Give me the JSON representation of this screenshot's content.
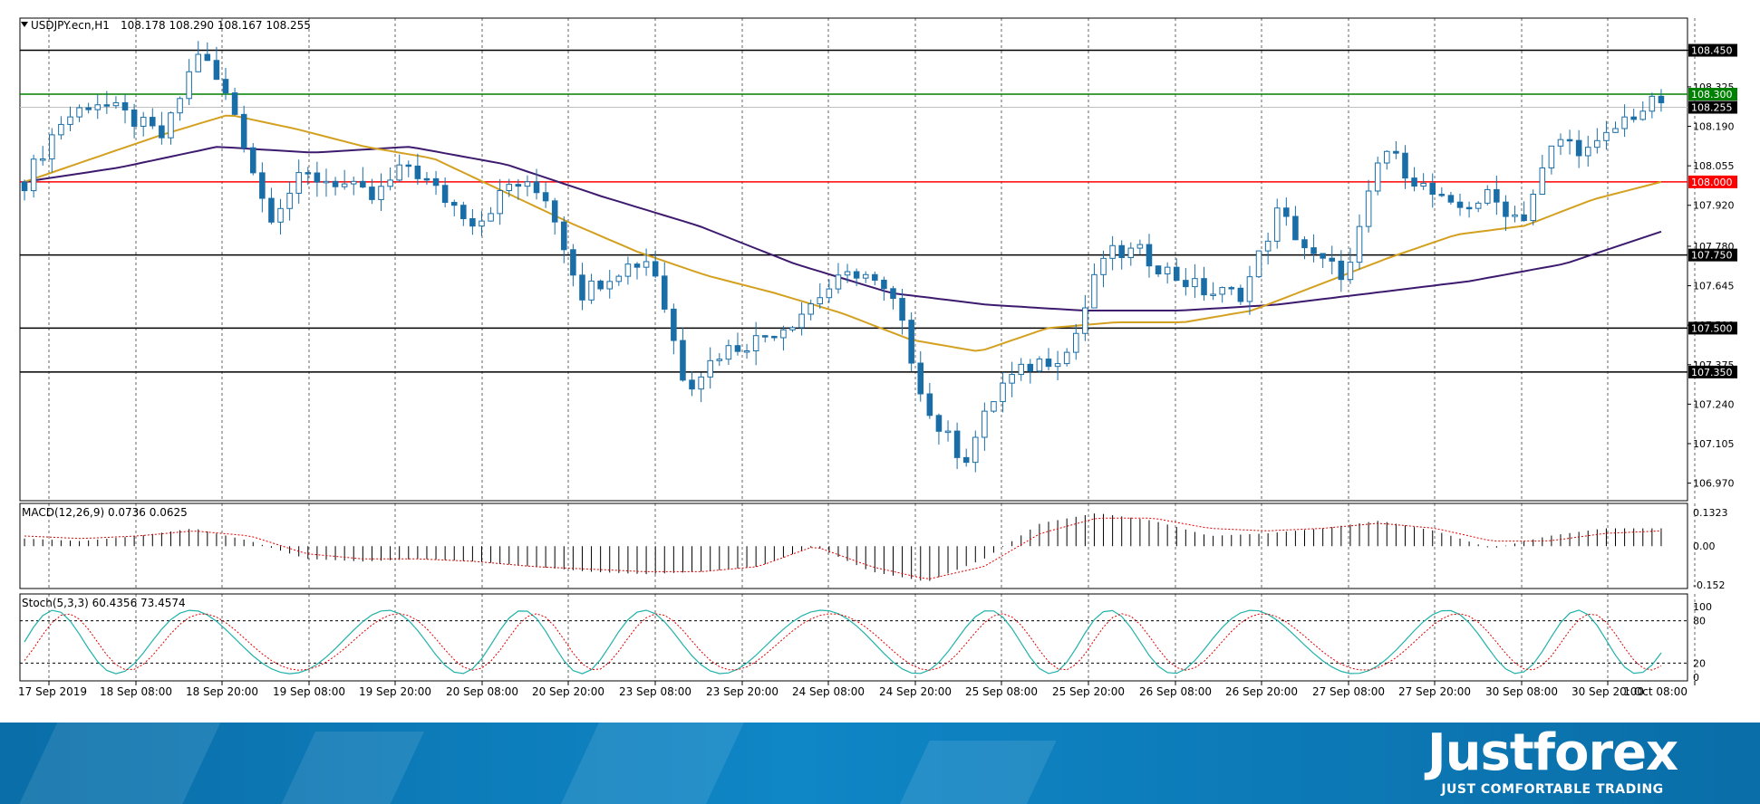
{
  "chart_data": {
    "type": "candlestick",
    "symbol_label": "USDJPY.ecn,H1",
    "ohlc_label": "108.178 108.290 108.167 108.255",
    "price_ticks": [
      "108.450",
      "108.325",
      "108.190",
      "108.055",
      "107.920",
      "107.780",
      "107.645",
      "107.510",
      "107.375",
      "107.240",
      "107.105",
      "106.970"
    ],
    "price_range": [
      106.91,
      108.56
    ],
    "current_price": "108.255",
    "levels": [
      {
        "label": "108.450",
        "value": 108.45,
        "color": "#000000"
      },
      {
        "label": "108.300",
        "value": 108.3,
        "color": "#008000"
      },
      {
        "label": "108.000",
        "value": 108.0,
        "color": "#ff0000"
      },
      {
        "label": "107.750",
        "value": 107.75,
        "color": "#000000"
      },
      {
        "label": "107.500",
        "value": 107.5,
        "color": "#000000"
      },
      {
        "label": "107.350",
        "value": 107.35,
        "color": "#000000"
      }
    ],
    "time_labels": [
      "17 Sep 2019",
      "18 Sep 08:00",
      "18 Sep 20:00",
      "19 Sep 08:00",
      "19 Sep 20:00",
      "20 Sep 08:00",
      "20 Sep 20:00",
      "23 Sep 08:00",
      "23 Sep 20:00",
      "24 Sep 08:00",
      "24 Sep 20:00",
      "25 Sep 08:00",
      "25 Sep 20:00",
      "26 Sep 08:00",
      "26 Sep 20:00",
      "27 Sep 08:00",
      "27 Sep 20:00",
      "30 Sep 08:00",
      "30 Sep 20:00",
      "1 Oct 08:00"
    ],
    "close_path": [
      108.0,
      108.2,
      108.28,
      108.22,
      108.15,
      108.45,
      108.25,
      107.88,
      108.02,
      108.0,
      107.94,
      108.06,
      107.95,
      107.86,
      108.0,
      107.95,
      107.62,
      107.7,
      107.74,
      107.3,
      107.42,
      107.46,
      107.52,
      107.63,
      107.7,
      107.58,
      107.2,
      107.05,
      107.3,
      107.38,
      107.42,
      107.75,
      107.76,
      107.68,
      107.62,
      107.62,
      107.9,
      107.74,
      107.68,
      108.12,
      108.0,
      107.9,
      107.95,
      107.87,
      108.15,
      108.1,
      108.22,
      108.28
    ],
    "candle_count": 180,
    "ma_fast_path": [
      108.0,
      108.08,
      108.16,
      108.23,
      108.18,
      108.12,
      108.08,
      107.97,
      107.86,
      107.76,
      107.68,
      107.62,
      107.55,
      107.46,
      107.42,
      107.5,
      107.52,
      107.52,
      107.56,
      107.65,
      107.74,
      107.82,
      107.85,
      107.94,
      108.0
    ],
    "ma_slow_path": [
      108.0,
      108.05,
      108.12,
      108.1,
      108.12,
      108.06,
      107.95,
      107.85,
      107.72,
      107.62,
      107.58,
      107.56,
      107.56,
      107.58,
      107.62,
      107.66,
      107.72,
      107.83
    ],
    "ma_fast_color": "#d4a020",
    "ma_slow_color": "#3d1a6e",
    "candle_color": "#1a6ea8",
    "macd": {
      "label": "MACD(12,26,9) 0.0736 0.0625",
      "ticks": [
        "0.1323",
        "0.00",
        "-0.152"
      ],
      "range": [
        -0.152,
        0.1323
      ],
      "hist_path": [
        0.03,
        0.02,
        0.04,
        0.07,
        0.02,
        -0.05,
        -0.06,
        -0.05,
        -0.06,
        -0.08,
        -0.1,
        -0.11,
        -0.1,
        -0.08,
        0.0,
        -0.1,
        -0.14,
        -0.05,
        0.09,
        0.13,
        0.1,
        0.04,
        0.05,
        0.07,
        0.1,
        0.06,
        -0.01,
        0.04,
        0.07,
        0.07
      ],
      "signal_path": [
        0.04,
        0.03,
        0.04,
        0.06,
        0.04,
        -0.03,
        -0.05,
        -0.05,
        -0.06,
        -0.08,
        -0.09,
        -0.1,
        -0.1,
        -0.08,
        0.0,
        -0.08,
        -0.13,
        -0.08,
        0.05,
        0.11,
        0.11,
        0.07,
        0.06,
        0.07,
        0.09,
        0.07,
        0.02,
        0.02,
        0.05,
        0.06
      ]
    },
    "stoch": {
      "label": "Stoch(5,3,3) 60.4356 73.4574",
      "ticks": [
        "100",
        "80",
        "20",
        "0"
      ],
      "levels": [
        80,
        20
      ]
    }
  }
}
